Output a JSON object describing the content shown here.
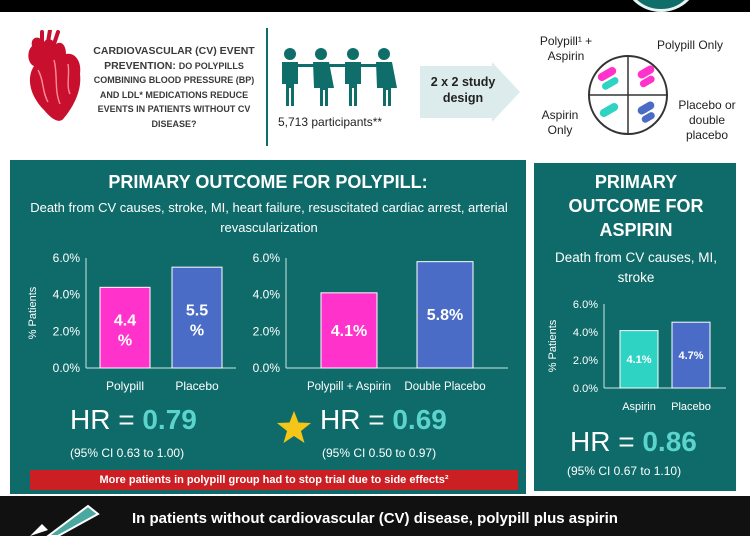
{
  "header": {
    "question_part1": "CARDIOVASCULAR (CV) EVENT PREVENTION:",
    "question_part2": "DO POLYPILLS COMBINING BLOOD PRESSURE (BP) AND LDL* MEDICATIONS REDUCE EVENTS IN PATIENTS WITHOUT CV DISEASE?",
    "participants": "5,713 participants**",
    "design_label": "2 x 2 study design",
    "arms": {
      "polypill_aspirin": "Polypill¹ + Aspirin",
      "polypill_only": "Polypill Only",
      "aspirin_only": "Aspirin Only",
      "placebo": "Placebo or double placebo"
    }
  },
  "colors": {
    "panel": "#0e6b6a",
    "polypill": "#ff33cc",
    "placebo": "#4a6cc6",
    "aspirin": "#2ed3c4",
    "hr_value": "#5ad4cc",
    "warning": "#cc1f24"
  },
  "polypill_panel": {
    "title": "PRIMARY OUTCOME FOR POLYPILL:",
    "subtitle": "Death from CV causes, stroke, MI, heart failure, resuscitated cardiac arrest, arterial revascularization",
    "hr1_prefix": "HR = ",
    "hr1_value": "0.79",
    "ci1": "(95% CI 0.63 to 1.00)",
    "hr2_prefix": "HR = ",
    "hr2_value": "0.69",
    "ci2": "(95% CI 0.50 to 0.97)",
    "warning": "More patients in polypill group had to stop trial due to side effects²",
    "star_icon": "star-icon"
  },
  "aspirin_panel": {
    "title": "PRIMARY OUTCOME FOR ASPIRIN",
    "subtitle": "Death from CV causes, MI, stroke",
    "hr_prefix": "HR = ",
    "hr_value": "0.86",
    "ci": "(95% CI 0.67 to 1.10)"
  },
  "bottom": {
    "text": "In patients without cardiovascular (CV) disease, polypill plus aspirin"
  },
  "chart_data": [
    {
      "type": "bar",
      "categories": [
        "Polypill",
        "Placebo"
      ],
      "values": [
        4.4,
        5.5
      ],
      "value_labels": [
        "4.4 %",
        "5.5 %"
      ],
      "colors": [
        "#ff33cc",
        "#4a6cc6"
      ],
      "ylabel": "% Patients",
      "yticks": [
        "0.0%",
        "2.0%",
        "4.0%",
        "6.0%"
      ],
      "ylim": [
        0,
        6
      ]
    },
    {
      "type": "bar",
      "categories": [
        "Polypill + Aspirin",
        "Double Placebo"
      ],
      "values": [
        4.1,
        5.8
      ],
      "value_labels": [
        "4.1%",
        "5.8%"
      ],
      "colors": [
        "#ff33cc",
        "#4a6cc6"
      ],
      "ylabel": "",
      "yticks": [
        "0.0%",
        "2.0%",
        "4.0%",
        "6.0%"
      ],
      "ylim": [
        0,
        6
      ]
    },
    {
      "type": "bar",
      "categories": [
        "Aspirin",
        "Placebo"
      ],
      "values": [
        4.1,
        4.7
      ],
      "value_labels": [
        "4.1%",
        "4.7%"
      ],
      "colors": [
        "#2ed3c4",
        "#4a6cc6"
      ],
      "ylabel": "% Patients",
      "yticks": [
        "0.0%",
        "2.0%",
        "4.0%",
        "6.0%"
      ],
      "ylim": [
        0,
        6
      ]
    }
  ]
}
